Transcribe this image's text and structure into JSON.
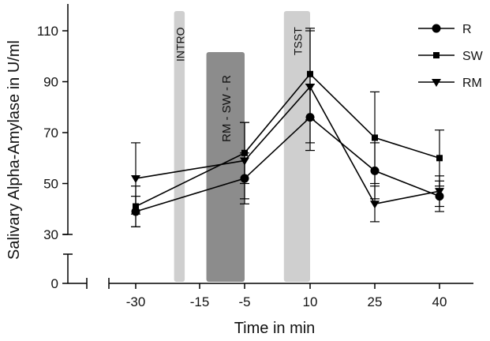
{
  "chart_data": {
    "type": "line",
    "title": "",
    "xlabel": "Time in min",
    "ylabel": "Salivary Alpha-Amylase in  U/ml",
    "x": [
      -30,
      -5,
      10,
      25,
      40
    ],
    "x_tick_labels": [
      "-30",
      "-15",
      "-5",
      "10",
      "25",
      "40"
    ],
    "y_tick_labels": [
      "0",
      "30",
      "50",
      "70",
      "90",
      "110"
    ],
    "ylim": [
      0,
      120
    ],
    "y_axis_break": [
      0,
      30
    ],
    "grid": false,
    "legend_position": "top-right",
    "series": [
      {
        "name": "R",
        "marker": "circle",
        "values": [
          39,
          52,
          76,
          55,
          45
        ],
        "errors": [
          6,
          10,
          13,
          11,
          6
        ]
      },
      {
        "name": "SW",
        "marker": "square",
        "values": [
          41,
          62,
          93,
          68,
          60
        ],
        "errors": [
          8,
          12,
          18,
          18,
          11
        ]
      },
      {
        "name": "RM",
        "marker": "triangle",
        "values": [
          52,
          59,
          88,
          42,
          47
        ],
        "errors": [
          14,
          15,
          22,
          7,
          6
        ]
      }
    ],
    "phases": [
      {
        "label": "INTRO",
        "color": "#cfcfcf"
      },
      {
        "label": "RM - SW - R",
        "color": "#8c8c8c"
      },
      {
        "label": "TSST",
        "color": "#cfcfcf"
      }
    ]
  }
}
